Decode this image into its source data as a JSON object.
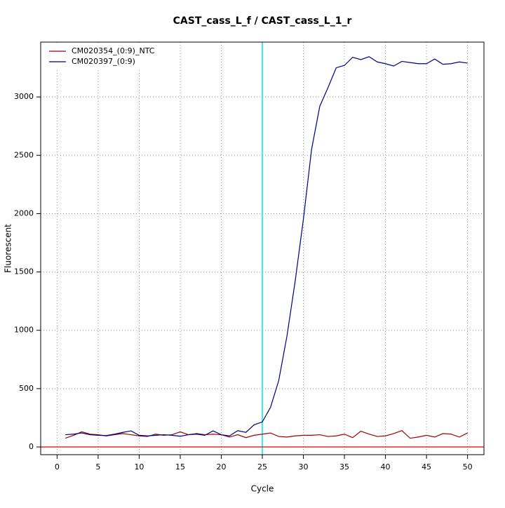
{
  "chart_data": {
    "type": "line",
    "title": "CAST_cass_L_f / CAST_cass_L_1_r",
    "x_label": "Cycle",
    "y_label": "Fluorescent",
    "x": [
      1,
      2,
      3,
      4,
      5,
      6,
      7,
      8,
      9,
      10,
      11,
      12,
      13,
      14,
      15,
      16,
      17,
      18,
      19,
      20,
      21,
      22,
      23,
      24,
      25,
      26,
      27,
      28,
      29,
      30,
      31,
      32,
      33,
      34,
      35,
      36,
      37,
      38,
      39,
      40,
      41,
      42,
      43,
      44,
      45,
      46,
      47,
      48,
      49,
      50
    ],
    "series": [
      {
        "name": "CM020354_(0:9)_NTC",
        "color": "#a00000",
        "values": [
          75,
          100,
          130,
          110,
          105,
          95,
          105,
          115,
          105,
          95,
          90,
          110,
          100,
          105,
          130,
          105,
          115,
          105,
          110,
          105,
          85,
          105,
          80,
          100,
          110,
          120,
          90,
          85,
          95,
          100,
          100,
          105,
          90,
          95,
          110,
          80,
          135,
          110,
          90,
          95,
          115,
          140,
          75,
          85,
          100,
          85,
          115,
          110,
          85,
          120
        ]
      },
      {
        "name": "CM020397_(0:9)",
        "color": "#000080",
        "values": [
          105,
          110,
          120,
          105,
          100,
          98,
          110,
          125,
          138,
          100,
          95,
          100,
          105,
          100,
          92,
          105,
          110,
          100,
          138,
          105,
          95,
          140,
          125,
          190,
          215,
          340,
          570,
          950,
          1420,
          1950,
          2550,
          2920,
          3080,
          3250,
          3270,
          3340,
          3320,
          3345,
          3300,
          3285,
          3265,
          3305,
          3295,
          3285,
          3285,
          3325,
          3280,
          3285,
          3300,
          3290
        ]
      }
    ],
    "threshold_x": 25,
    "threshold_color": "#00e5e5",
    "baseline_y": 0,
    "baseline_color": "#e00000",
    "xlim": [
      -2,
      52
    ],
    "ylim": [
      -66,
      3470
    ],
    "xticks": [
      0,
      5,
      10,
      15,
      20,
      25,
      30,
      35,
      40,
      45,
      50
    ],
    "yticks": [
      0,
      500,
      1000,
      1500,
      2000,
      2500,
      3000
    ],
    "grid": true,
    "legend": "top-left"
  }
}
